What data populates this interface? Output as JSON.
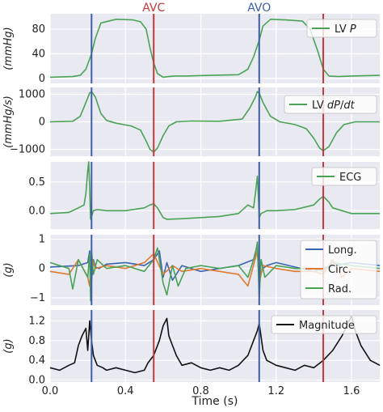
{
  "chart_data": {
    "type": "line",
    "xlim": [
      0,
      1.75
    ],
    "xticks": [
      0.0,
      0.4,
      0.8,
      1.2,
      1.6
    ],
    "xtick_labels": [
      "0.0",
      "0.4",
      "0.8",
      "1.2",
      "1.6"
    ],
    "xlabel": "Time (s)",
    "grid": true,
    "event_markers": [
      {
        "label": "",
        "t": 0.22,
        "color": "#3c5fa6"
      },
      {
        "label": "AVC",
        "t": 0.55,
        "color": "#c1393b"
      },
      {
        "label": "AVO",
        "t": 1.11,
        "color": "#3c5fa6"
      },
      {
        "label": "",
        "t": 1.45,
        "color": "#c1393b"
      }
    ],
    "panels": [
      {
        "ylabel": "(mmHg)",
        "ylim": [
          -8,
          105
        ],
        "yticks": [
          0,
          40,
          80
        ],
        "ytick_labels": [
          "0",
          "40",
          "80"
        ],
        "legend": "top-right",
        "series": [
          {
            "name": "LV P",
            "color": "#4aa257",
            "t": [
              0.0,
              0.12,
              0.16,
              0.19,
              0.22,
              0.24,
              0.27,
              0.35,
              0.44,
              0.48,
              0.51,
              0.53,
              0.55,
              0.57,
              0.6,
              0.63,
              0.66,
              0.72,
              0.85,
              1.0,
              1.05,
              1.08,
              1.11,
              1.13,
              1.17,
              1.25,
              1.34,
              1.38,
              1.42,
              1.45,
              1.48,
              1.53,
              1.6,
              1.75
            ],
            "values": [
              2,
              3,
              5,
              15,
              40,
              65,
              90,
              96,
              95,
              92,
              80,
              50,
              25,
              8,
              2,
              3,
              4,
              4,
              5,
              6,
              15,
              35,
              62,
              85,
              96,
              95,
              93,
              80,
              45,
              15,
              4,
              3,
              4,
              5
            ]
          }
        ]
      },
      {
        "ylabel": "(mmHg/s)",
        "ylim": [
          -1250,
          1250
        ],
        "yticks": [
          -1000,
          0,
          1000
        ],
        "ytick_labels": [
          "−1000",
          "0",
          "1000"
        ],
        "legend": "top-right",
        "series": [
          {
            "name": "LV dP/dt",
            "color": "#4aa257",
            "t": [
              0.0,
              0.12,
              0.16,
              0.19,
              0.21,
              0.22,
              0.24,
              0.27,
              0.3,
              0.35,
              0.43,
              0.48,
              0.51,
              0.53,
              0.55,
              0.57,
              0.6,
              0.63,
              0.67,
              0.75,
              0.9,
              1.02,
              1.06,
              1.09,
              1.1,
              1.11,
              1.13,
              1.17,
              1.22,
              1.3,
              1.36,
              1.4,
              1.43,
              1.45,
              1.48,
              1.52,
              1.56,
              1.62,
              1.75
            ],
            "values": [
              0,
              20,
              200,
              700,
              1050,
              1100,
              900,
              300,
              50,
              -50,
              -150,
              -300,
              -700,
              -1000,
              -1100,
              -950,
              -500,
              -150,
              0,
              30,
              20,
              100,
              500,
              900,
              1100,
              1050,
              700,
              200,
              0,
              -100,
              -250,
              -600,
              -950,
              -1050,
              -900,
              -400,
              -100,
              0,
              0
            ]
          }
        ]
      },
      {
        "ylabel": "",
        "ylim": [
          -0.32,
          0.85
        ],
        "yticks": [
          0.0,
          0.5
        ],
        "ytick_labels": [
          "0.0",
          "0.5"
        ],
        "legend": "top-right",
        "series": [
          {
            "name": "ECG",
            "color": "#4aa257",
            "t": [
              0.0,
              0.1,
              0.15,
              0.18,
              0.19,
              0.2,
              0.205,
              0.21,
              0.215,
              0.22,
              0.23,
              0.25,
              0.3,
              0.4,
              0.5,
              0.53,
              0.55,
              0.57,
              0.6,
              0.62,
              0.7,
              0.9,
              1.0,
              1.05,
              1.08,
              1.09,
              1.1,
              1.105,
              1.11,
              1.12,
              1.15,
              1.2,
              1.3,
              1.4,
              1.43,
              1.45,
              1.48,
              1.5,
              1.6,
              1.75
            ],
            "values": [
              -0.05,
              -0.03,
              0.05,
              0.1,
              0.3,
              0.7,
              0.85,
              0.4,
              -0.15,
              -0.1,
              0.0,
              0.02,
              0.0,
              0.0,
              0.05,
              0.1,
              0.12,
              0.05,
              -0.12,
              -0.15,
              -0.14,
              -0.1,
              -0.05,
              0.1,
              0.05,
              0.3,
              0.6,
              0.3,
              -0.12,
              -0.05,
              0.0,
              0.0,
              0.02,
              0.1,
              0.2,
              0.25,
              0.15,
              0.05,
              -0.05,
              -0.05
            ]
          }
        ]
      },
      {
        "ylabel": "(g)",
        "ylim": [
          -1.25,
          1.15
        ],
        "yticks": [
          -1,
          0,
          1
        ],
        "ytick_labels": [
          "−1",
          "0",
          "1"
        ],
        "legend": "top-right",
        "series": [
          {
            "name": "Long.",
            "color": "#3a65b0",
            "t": [
              0.0,
              0.15,
              0.2,
              0.21,
              0.22,
              0.23,
              0.24,
              0.26,
              0.3,
              0.4,
              0.5,
              0.55,
              0.58,
              0.6,
              0.62,
              0.65,
              0.7,
              0.8,
              1.0,
              1.08,
              1.1,
              1.11,
              1.12,
              1.13,
              1.15,
              1.2,
              1.3,
              1.4,
              1.45,
              1.5,
              1.6,
              1.75
            ],
            "values": [
              0.05,
              0.1,
              0.2,
              0.6,
              -0.4,
              0.3,
              0.05,
              0.0,
              0.15,
              0.2,
              0.1,
              0.3,
              0.6,
              -0.3,
              0.2,
              -0.4,
              0.1,
              -0.1,
              0.1,
              0.3,
              0.8,
              -0.5,
              0.3,
              0.0,
              0.1,
              0.2,
              0.05,
              -0.1,
              0.0,
              0.1,
              0.2,
              0.1
            ]
          },
          {
            "name": "Circ.",
            "color": "#e0782f",
            "t": [
              0.0,
              0.1,
              0.15,
              0.2,
              0.21,
              0.22,
              0.24,
              0.3,
              0.4,
              0.5,
              0.55,
              0.6,
              0.65,
              0.7,
              0.8,
              0.9,
              1.0,
              1.05,
              1.1,
              1.11,
              1.13,
              1.2,
              1.3,
              1.4,
              1.45,
              1.5,
              1.55,
              1.6,
              1.75
            ],
            "values": [
              -0.1,
              -0.2,
              0.3,
              -0.3,
              -0.6,
              0.4,
              0.0,
              0.1,
              0.0,
              0.2,
              0.5,
              -0.2,
              0.1,
              -0.1,
              0.0,
              -0.1,
              -0.2,
              -0.6,
              0.6,
              -0.5,
              0.1,
              0.0,
              -0.1,
              -0.1,
              -0.2,
              0.3,
              -0.3,
              0.0,
              -0.1
            ]
          },
          {
            "name": "Rad.",
            "color": "#4aa257",
            "t": [
              0.0,
              0.1,
              0.12,
              0.15,
              0.2,
              0.21,
              0.215,
              0.22,
              0.23,
              0.25,
              0.3,
              0.35,
              0.4,
              0.5,
              0.55,
              0.57,
              0.6,
              0.62,
              0.65,
              0.68,
              0.72,
              0.8,
              0.9,
              1.0,
              1.05,
              1.09,
              1.1,
              1.11,
              1.12,
              1.14,
              1.2,
              1.3,
              1.4,
              1.45,
              1.5,
              1.6,
              1.75
            ],
            "values": [
              0.2,
              0.0,
              -0.7,
              0.3,
              -0.3,
              0.5,
              -1.1,
              0.6,
              -0.2,
              0.3,
              0.0,
              0.05,
              0.1,
              -0.1,
              0.3,
              0.7,
              -0.5,
              -0.9,
              0.1,
              -0.6,
              0.0,
              0.1,
              0.0,
              0.1,
              -0.3,
              0.5,
              0.9,
              -1.0,
              0.3,
              -0.3,
              0.1,
              0.0,
              0.0,
              -0.1,
              0.2,
              0.1,
              0.0
            ]
          }
        ]
      },
      {
        "ylabel": "(g)",
        "ylim": [
          -0.04,
          1.42
        ],
        "yticks": [
          0.0,
          0.4,
          0.8,
          1.2
        ],
        "ytick_labels": [
          "0.0",
          "0.4",
          "0.8",
          "1.2"
        ],
        "legend": "top-right",
        "series": [
          {
            "name": "Magnitude",
            "color": "#111111",
            "t": [
              0.0,
              0.05,
              0.1,
              0.13,
              0.15,
              0.17,
              0.19,
              0.2,
              0.21,
              0.22,
              0.23,
              0.25,
              0.28,
              0.3,
              0.35,
              0.4,
              0.45,
              0.5,
              0.52,
              0.55,
              0.58,
              0.6,
              0.62,
              0.63,
              0.65,
              0.67,
              0.7,
              0.75,
              0.8,
              0.85,
              0.9,
              0.95,
              1.0,
              1.05,
              1.08,
              1.1,
              1.11,
              1.13,
              1.15,
              1.2,
              1.25,
              1.3,
              1.35,
              1.4,
              1.45,
              1.5,
              1.55,
              1.6,
              1.62,
              1.65,
              1.7,
              1.75
            ],
            "values": [
              0.25,
              0.2,
              0.3,
              0.35,
              0.7,
              0.9,
              1.05,
              0.6,
              1.2,
              0.8,
              0.5,
              0.3,
              0.25,
              0.2,
              0.25,
              0.2,
              0.15,
              0.2,
              0.35,
              0.5,
              0.8,
              1.1,
              1.25,
              0.9,
              0.7,
              0.5,
              0.3,
              0.35,
              0.25,
              0.2,
              0.25,
              0.2,
              0.3,
              0.5,
              0.8,
              1.0,
              1.15,
              0.6,
              0.4,
              0.3,
              0.25,
              0.2,
              0.3,
              0.25,
              0.4,
              0.6,
              0.9,
              1.3,
              1.0,
              0.7,
              0.4,
              0.3
            ]
          }
        ]
      }
    ]
  }
}
